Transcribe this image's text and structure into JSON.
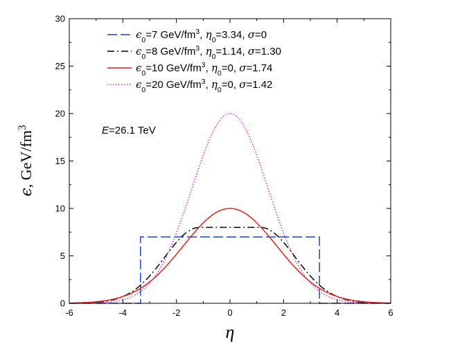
{
  "chart_data": {
    "type": "line",
    "xlabel": "η",
    "ylabel": "ϵ, GeV/fm³",
    "xlim": [
      -6,
      6
    ],
    "ylim": [
      0,
      30
    ],
    "xticks": [
      -6,
      -4,
      -2,
      0,
      2,
      4,
      6
    ],
    "yticks": [
      0,
      5,
      10,
      15,
      20,
      25,
      30
    ],
    "grid": false,
    "legend_position": "top-center",
    "annotation": "E=26.1 TeV",
    "series": [
      {
        "name": "ϵ₀=7 GeV/fm³, η₀=3.34, σ=0",
        "color": "#1f3fd6",
        "dash": "dashed",
        "eps0": 7,
        "eta0": 3.34,
        "sigma": 0
      },
      {
        "name": "ϵ₀=8 GeV/fm³, η₀=1.14, σ=1.30",
        "color": "#000000",
        "dash": "dash-dot",
        "eps0": 8,
        "eta0": 1.14,
        "sigma": 1.3
      },
      {
        "name": "ϵ₀=10 GeV/fm³, η₀=0, σ=1.74",
        "color": "#e8201a",
        "dash": "solid",
        "eps0": 10,
        "eta0": 0,
        "sigma": 1.74
      },
      {
        "name": "ϵ₀=20 GeV/fm³, η₀=0, σ=1.42",
        "color": "#e020e0",
        "dash": "dotted",
        "eps0": 20,
        "eta0": 0,
        "sigma": 1.42
      }
    ]
  }
}
